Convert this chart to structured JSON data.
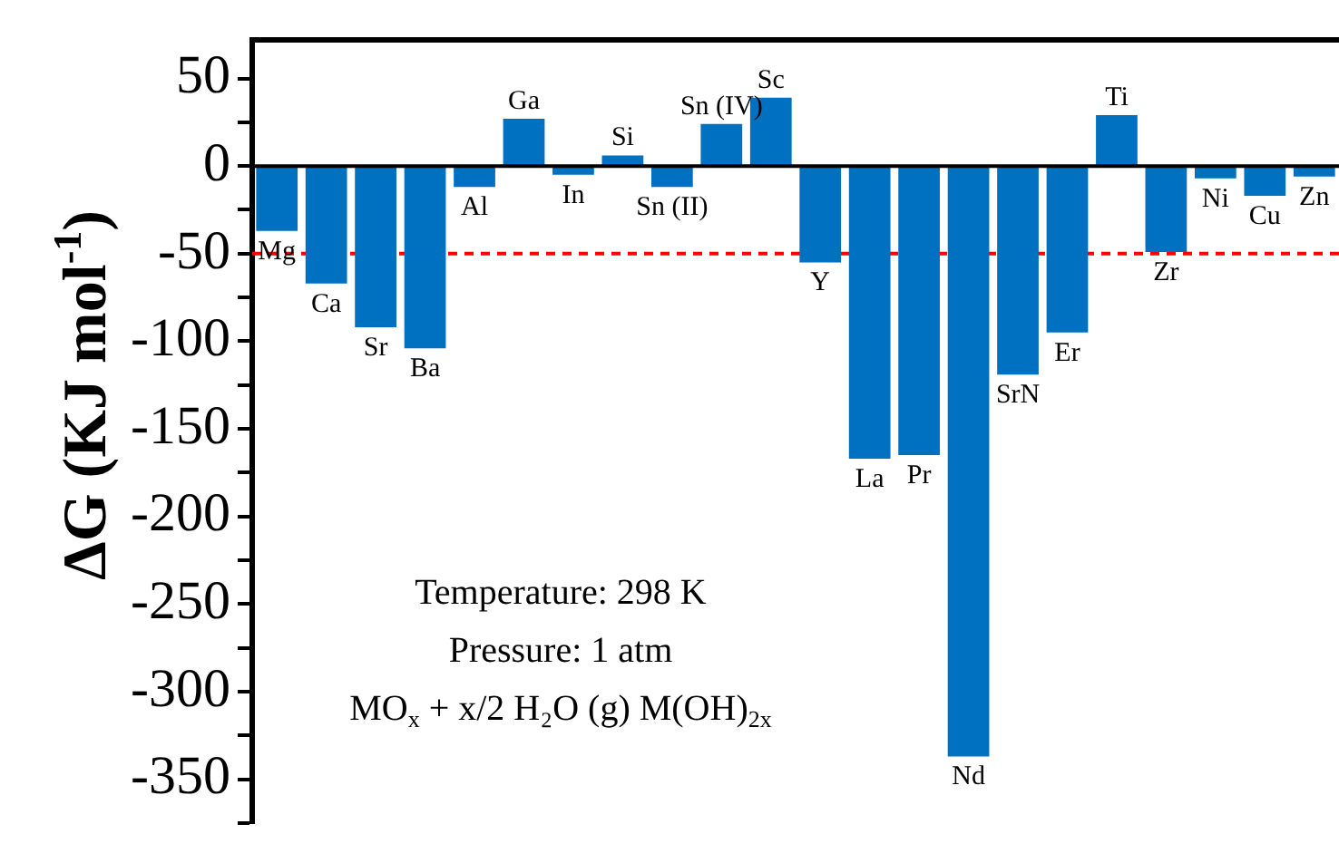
{
  "chart_data": {
    "type": "bar",
    "ylabel": "ΔG (KJ mol$^{-1}$)",
    "categories": [
      "Mg",
      "Ca",
      "Sr",
      "Ba",
      "Al",
      "Ga",
      "In",
      "Si",
      "Sn (II)",
      "Sn (IV)",
      "Sc",
      "Y",
      "La",
      "Pr",
      "Nd",
      "SrN",
      "Er",
      "Ti",
      "Zr",
      "Ni",
      "Cu",
      "Zn"
    ],
    "values": [
      -37,
      -67,
      -92,
      -104,
      -12,
      27,
      -5,
      6,
      -12,
      24,
      39,
      -55,
      -167,
      -165,
      -337,
      -119,
      -95,
      29,
      -49,
      -7,
      -17,
      -6
    ],
    "color": "#0070c0",
    "ylim": [
      -375,
      72
    ],
    "yticks": [
      {
        "value": -375,
        "label": null
      },
      -350,
      {
        "value": -325,
        "label": null
      },
      -300,
      {
        "value": -275,
        "label": null
      },
      -250,
      {
        "value": -225,
        "label": null
      },
      -200,
      {
        "value": -175,
        "label": null
      },
      -150,
      {
        "value": -125,
        "label": null
      },
      -100,
      {
        "value": -75,
        "label": null
      },
      -50,
      {
        "value": -25,
        "label": null
      },
      0,
      {
        "value": 25,
        "label": null
      },
      50
    ],
    "tick_labels": "y",
    "grid": false,
    "legend": false,
    "ref_lines": [
      {
        "axis": "y",
        "value": -50,
        "color": "#ff0000",
        "line_style": "dashed"
      }
    ],
    "annotations": [
      "Temperature: 298 K",
      "Pressure: 1 atm",
      "MO$_{x}$ + x/2 H₂O (g) M(OH)$_{2x}$"
    ]
  }
}
